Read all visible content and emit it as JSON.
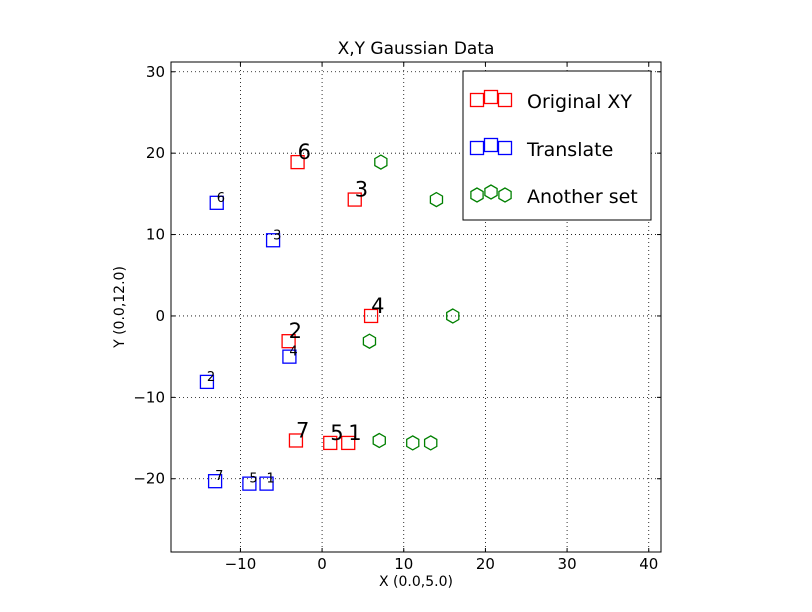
{
  "chart_data": {
    "type": "scatter",
    "title": "X,Y Gaussian Data",
    "xlabel": "X (0.0,5.0)",
    "ylabel": "Y (0.0,12.0)",
    "xlim": [
      -18.5,
      41.5
    ],
    "ylim": [
      -29,
      31.2
    ],
    "xticks": [
      -10,
      0,
      10,
      20,
      30,
      40
    ],
    "xtick_labels": [
      "−10",
      "0",
      "10",
      "20",
      "30",
      "40"
    ],
    "yticks": [
      -20,
      -10,
      0,
      10,
      20,
      30
    ],
    "ytick_labels": [
      "−20",
      "−10",
      "0",
      "10",
      "20",
      "30"
    ],
    "grid": true,
    "legend_position": "top-right",
    "series": [
      {
        "name": "Original XY",
        "marker": "square",
        "color": "#ff0000",
        "label_size": "large",
        "points": [
          {
            "x": 3.2,
            "y": -15.6,
            "label": "1"
          },
          {
            "x": -4.1,
            "y": -3.1,
            "label": "2"
          },
          {
            "x": 4.0,
            "y": 14.3,
            "label": "3"
          },
          {
            "x": 6.0,
            "y": 0.0,
            "label": "4"
          },
          {
            "x": 1.0,
            "y": -15.6,
            "label": "5"
          },
          {
            "x": -3.0,
            "y": 18.9,
            "label": "6"
          },
          {
            "x": -3.2,
            "y": -15.3,
            "label": "7"
          }
        ]
      },
      {
        "name": "Translate",
        "marker": "square",
        "color": "#0000ff",
        "label_size": "small",
        "points": [
          {
            "x": -6.8,
            "y": -20.6,
            "label": "1"
          },
          {
            "x": -14.1,
            "y": -8.1,
            "label": "2"
          },
          {
            "x": -6.0,
            "y": 9.3,
            "label": "3"
          },
          {
            "x": -4.0,
            "y": -5.0,
            "label": "4"
          },
          {
            "x": -8.9,
            "y": -20.6,
            "label": "5"
          },
          {
            "x": -12.9,
            "y": 13.9,
            "label": "6"
          },
          {
            "x": -13.1,
            "y": -20.3,
            "label": "7"
          }
        ]
      },
      {
        "name": "Another set",
        "marker": "hexagon",
        "color": "#008000",
        "points": [
          {
            "x": 7.2,
            "y": 18.9
          },
          {
            "x": 14.0,
            "y": 14.3
          },
          {
            "x": 16.0,
            "y": 0.0
          },
          {
            "x": 5.8,
            "y": -3.1
          },
          {
            "x": 7.0,
            "y": -15.3
          },
          {
            "x": 11.1,
            "y": -15.6
          },
          {
            "x": 13.3,
            "y": -15.6
          }
        ]
      }
    ]
  }
}
